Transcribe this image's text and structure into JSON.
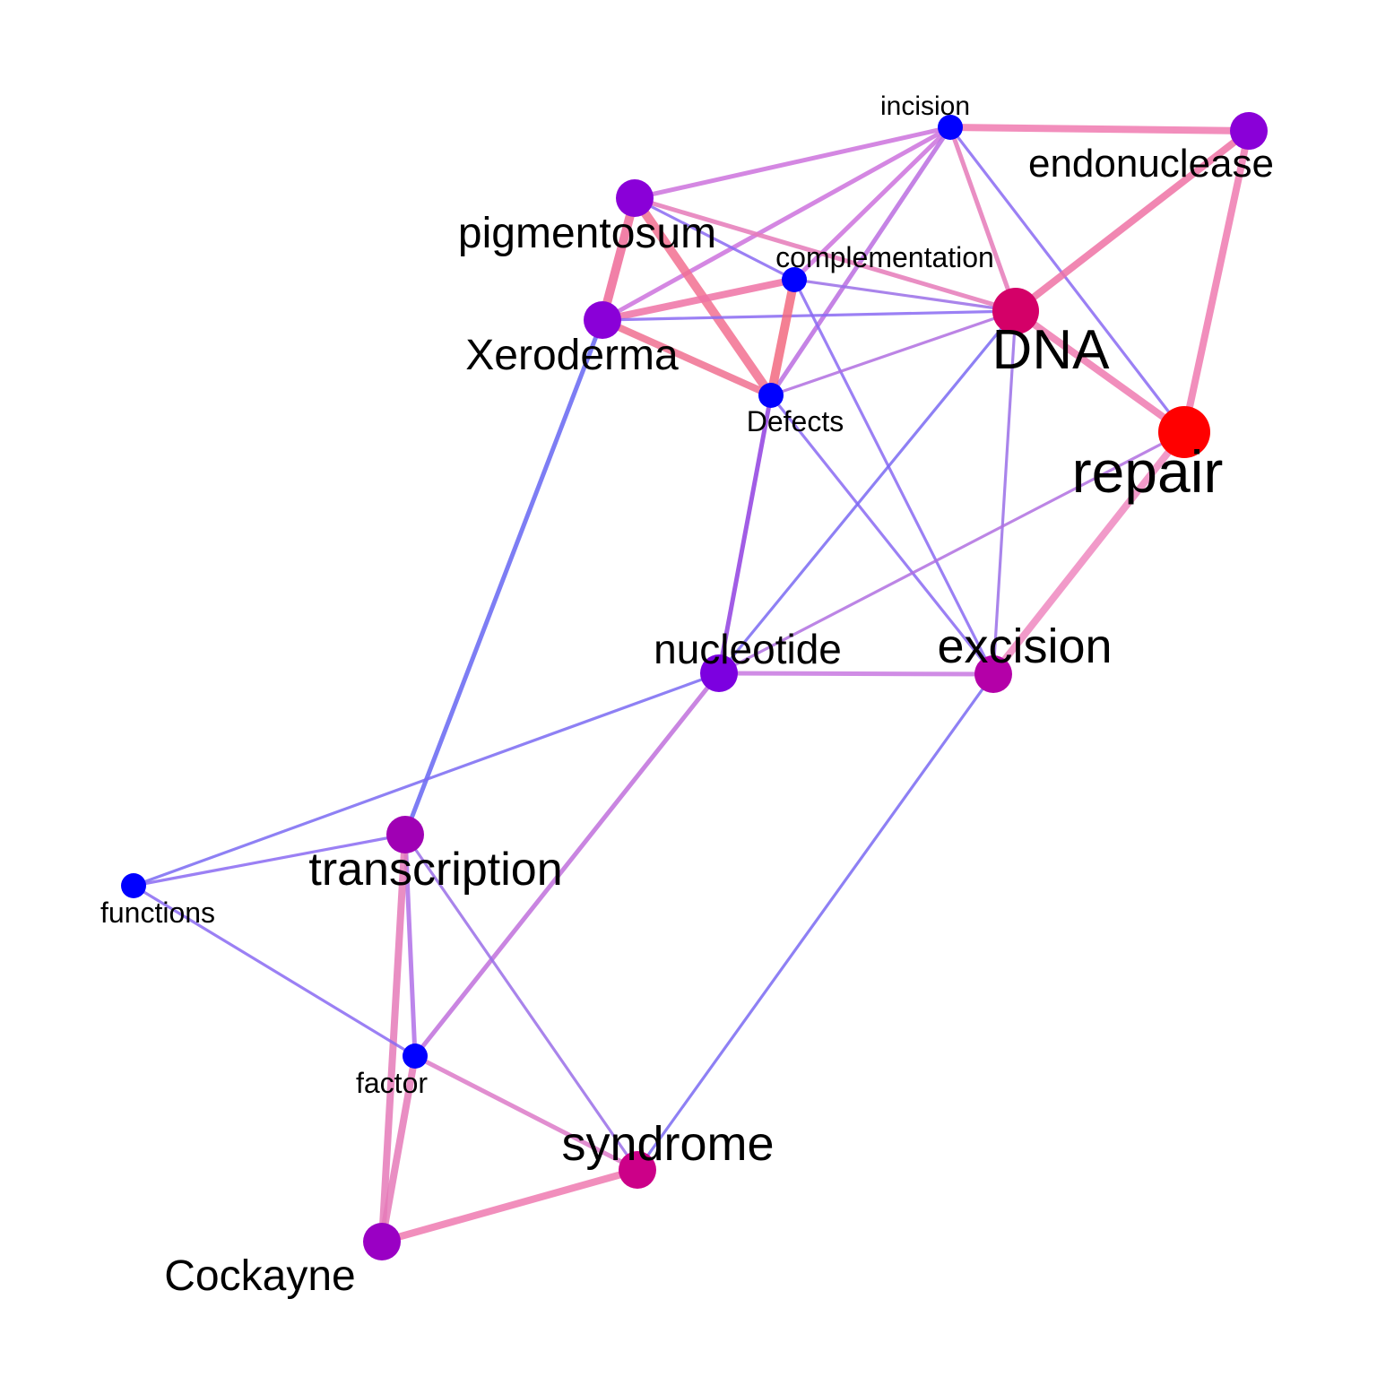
{
  "diagram": {
    "type": "word co-occurrence network",
    "nodes": [
      {
        "id": "incision",
        "label": "incision",
        "color": "#0000ff",
        "importance": 1
      },
      {
        "id": "endonuclease",
        "label": "endonuclease",
        "color": "#8a00d8",
        "importance": 2
      },
      {
        "id": "pigmentosum",
        "label": "pigmentosum",
        "color": "#8a00d8",
        "importance": 2
      },
      {
        "id": "complementation",
        "label": "complementation",
        "color": "#0000ff",
        "importance": 1
      },
      {
        "id": "Xeroderma",
        "label": "Xeroderma",
        "color": "#8a00d8",
        "importance": 2
      },
      {
        "id": "DNA",
        "label": "DNA",
        "color": "#d40068",
        "importance": 3
      },
      {
        "id": "Defects",
        "label": "Defects",
        "color": "#0000ff",
        "importance": 1
      },
      {
        "id": "repair",
        "label": "repair",
        "color": "#ff0000",
        "importance": 4
      },
      {
        "id": "nucleotide",
        "label": "nucleotide",
        "color": "#7c00e0",
        "importance": 2
      },
      {
        "id": "excision",
        "label": "excision",
        "color": "#b400a8",
        "importance": 2
      },
      {
        "id": "transcription",
        "label": "transcription",
        "color": "#a000b4",
        "importance": 2
      },
      {
        "id": "functions",
        "label": "functions",
        "color": "#0000ff",
        "importance": 1
      },
      {
        "id": "factor",
        "label": "factor",
        "color": "#0000ff",
        "importance": 1
      },
      {
        "id": "syndrome",
        "label": "syndrome",
        "color": "#cc0088",
        "importance": 2
      },
      {
        "id": "Cockayne",
        "label": "Cockayne",
        "color": "#9a00c4",
        "importance": 2
      }
    ],
    "edges": [
      {
        "source": "incision",
        "target": "endonuclease",
        "weight": 3,
        "color": "#f07ab0"
      },
      {
        "source": "incision",
        "target": "pigmentosum",
        "weight": 2,
        "color": "#cc72dd"
      },
      {
        "source": "incision",
        "target": "Xeroderma",
        "weight": 2,
        "color": "#cc72dd"
      },
      {
        "source": "incision",
        "target": "complementation",
        "weight": 2,
        "color": "#cc72dd"
      },
      {
        "source": "incision",
        "target": "Defects",
        "weight": 2,
        "color": "#bb6de0"
      },
      {
        "source": "incision",
        "target": "DNA",
        "weight": 2,
        "color": "#e57ab8"
      },
      {
        "source": "incision",
        "target": "repair",
        "weight": 1,
        "color": "#8a6af2"
      },
      {
        "source": "endonuclease",
        "target": "DNA",
        "weight": 3,
        "color": "#ee72a4"
      },
      {
        "source": "endonuclease",
        "target": "repair",
        "weight": 3,
        "color": "#ee7ab0"
      },
      {
        "source": "pigmentosum",
        "target": "Xeroderma",
        "weight": 4,
        "color": "#ee6a98"
      },
      {
        "source": "pigmentosum",
        "target": "Defects",
        "weight": 4,
        "color": "#f27090"
      },
      {
        "source": "pigmentosum",
        "target": "complementation",
        "weight": 1,
        "color": "#8a6af2"
      },
      {
        "source": "pigmentosum",
        "target": "DNA",
        "weight": 2,
        "color": "#e57ab8"
      },
      {
        "source": "Xeroderma",
        "target": "complementation",
        "weight": 3,
        "color": "#ee72a4"
      },
      {
        "source": "Xeroderma",
        "target": "Defects",
        "weight": 3,
        "color": "#f07090"
      },
      {
        "source": "Xeroderma",
        "target": "DNA",
        "weight": 1,
        "color": "#8a6af2"
      },
      {
        "source": "Xeroderma",
        "target": "transcription",
        "weight": 2,
        "color": "#6666f2"
      },
      {
        "source": "complementation",
        "target": "Defects",
        "weight": 4,
        "color": "#f26a80"
      },
      {
        "source": "complementation",
        "target": "DNA",
        "weight": 1,
        "color": "#9a6ee8"
      },
      {
        "source": "complementation",
        "target": "excision",
        "weight": 1,
        "color": "#8a6af2"
      },
      {
        "source": "Defects",
        "target": "DNA",
        "weight": 1,
        "color": "#b06ee0"
      },
      {
        "source": "Defects",
        "target": "nucleotide",
        "weight": 2,
        "color": "#9040e0"
      },
      {
        "source": "Defects",
        "target": "excision",
        "weight": 1,
        "color": "#8a6af2"
      },
      {
        "source": "DNA",
        "target": "repair",
        "weight": 3,
        "color": "#ee7ab0"
      },
      {
        "source": "DNA",
        "target": "nucleotide",
        "weight": 1,
        "color": "#7a6af2"
      },
      {
        "source": "DNA",
        "target": "excision",
        "weight": 1,
        "color": "#9a6ee8"
      },
      {
        "source": "repair",
        "target": "excision",
        "weight": 3,
        "color": "#ee88c0"
      },
      {
        "source": "repair",
        "target": "nucleotide",
        "weight": 1,
        "color": "#b070e0"
      },
      {
        "source": "nucleotide",
        "target": "excision",
        "weight": 2,
        "color": "#c878e0"
      },
      {
        "source": "nucleotide",
        "target": "functions",
        "weight": 1,
        "color": "#7a6af2"
      },
      {
        "source": "nucleotide",
        "target": "factor",
        "weight": 2,
        "color": "#c070dc"
      },
      {
        "source": "excision",
        "target": "syndrome",
        "weight": 1,
        "color": "#7a6af2"
      },
      {
        "source": "transcription",
        "target": "functions",
        "weight": 1,
        "color": "#8a6af2"
      },
      {
        "source": "transcription",
        "target": "factor",
        "weight": 2,
        "color": "#b070e8"
      },
      {
        "source": "transcription",
        "target": "Cockayne",
        "weight": 3,
        "color": "#e57ab8"
      },
      {
        "source": "transcription",
        "target": "syndrome",
        "weight": 1,
        "color": "#9a6ee8"
      },
      {
        "source": "functions",
        "target": "factor",
        "weight": 1,
        "color": "#8a6af2"
      },
      {
        "source": "factor",
        "target": "syndrome",
        "weight": 2,
        "color": "#dc7ac8"
      },
      {
        "source": "factor",
        "target": "Cockayne",
        "weight": 3,
        "color": "#e57ab8"
      },
      {
        "source": "Cockayne",
        "target": "syndrome",
        "weight": 3,
        "color": "#ee7ab0"
      }
    ]
  }
}
